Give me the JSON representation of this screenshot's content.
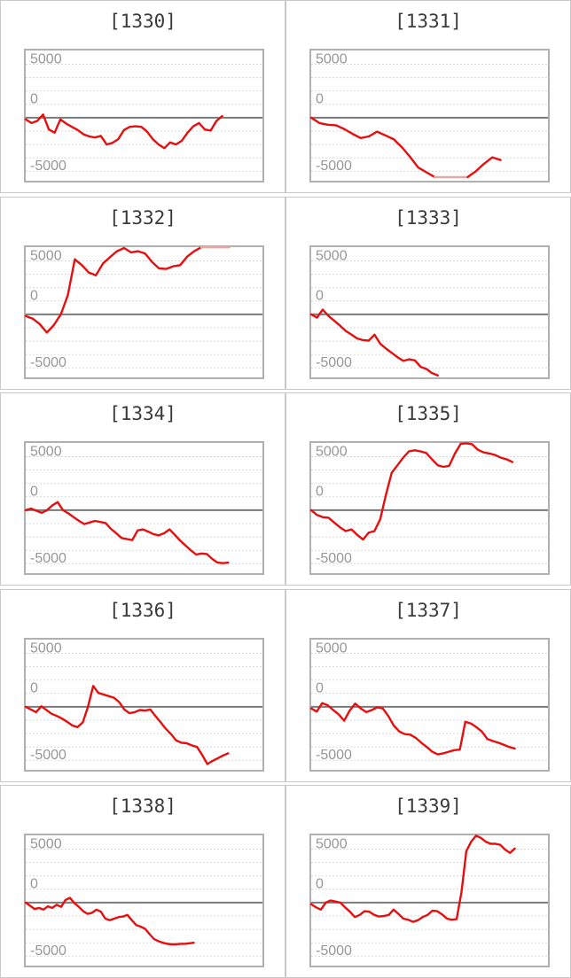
{
  "page": {
    "background_color": "#ffffff",
    "description_labels": []
  },
  "chart_config": {
    "type": "line",
    "y_tick_labels": [
      "5000",
      "0",
      "-5000"
    ],
    "grid_values": [
      5000,
      3750,
      2500,
      1250,
      0,
      -1250,
      -2500,
      -3750,
      -5000
    ],
    "ylim": [
      -6050,
      6450
    ],
    "zero_line": true,
    "grid_style": "dashed",
    "legend": false,
    "line_color": "#e60f0f",
    "clipped_line_color": "#e3aaa5",
    "grid_color": "#d8d8d8",
    "zero_line_color": "#7a7a7a",
    "plot_border_color": "#b0b0b0",
    "cell_border_color": "#c9c9c9",
    "tick_label_color": "#979797",
    "title_color": "#3a3a3a"
  },
  "chart_data": [
    {
      "type": "line",
      "title": "[1330]",
      "x_end_fraction": 0.83,
      "values": [
        -150,
        -500,
        -300,
        300,
        -1100,
        -1400,
        -150,
        -550,
        -850,
        -1150,
        -1550,
        -1750,
        -1850,
        -1700,
        -2500,
        -2350,
        -2000,
        -1150,
        -850,
        -800,
        -850,
        -1300,
        -2000,
        -2500,
        -2850,
        -2300,
        -2500,
        -2150,
        -1400,
        -800,
        -500,
        -1100,
        -1200,
        -300,
        150
      ]
    },
    {
      "type": "line",
      "title": "[1331]",
      "x_end_fraction": 0.8,
      "clip_range": [
        15,
        19
      ],
      "values": [
        0,
        -500,
        -650,
        -700,
        -1050,
        -1500,
        -1900,
        -1750,
        -1300,
        -1650,
        -2000,
        -2750,
        -3650,
        -4650,
        -5100,
        -5550,
        -5550,
        -5550,
        -5550,
        -5550,
        -5000,
        -4300,
        -3700,
        -3950
      ]
    },
    {
      "type": "line",
      "title": "[1332]",
      "x_end_fraction": 0.86,
      "clip_range": [
        25,
        29
      ],
      "values": [
        -150,
        -400,
        -900,
        -1700,
        -1000,
        0,
        1800,
        5150,
        4600,
        3900,
        3650,
        4750,
        5350,
        5900,
        6200,
        5800,
        5900,
        5700,
        4900,
        4300,
        4250,
        4500,
        4600,
        5400,
        5900,
        6280,
        6280,
        6280,
        6280,
        6280
      ]
    },
    {
      "type": "line",
      "title": "[1333]",
      "x_end_fraction": 0.535,
      "values": [
        0,
        -300,
        450,
        -150,
        -600,
        -1050,
        -1550,
        -1900,
        -2250,
        -2400,
        -2450,
        -1900,
        -2750,
        -3200,
        -3600,
        -4000,
        -4350,
        -4200,
        -4300,
        -4900,
        -5100,
        -5500,
        -5700
      ]
    },
    {
      "type": "line",
      "title": "[1334]",
      "x_end_fraction": 0.855,
      "values": [
        0,
        150,
        -50,
        -250,
        0,
        450,
        750,
        0,
        -300,
        -650,
        -1000,
        -1300,
        -1150,
        -1000,
        -1100,
        -1200,
        -1750,
        -2150,
        -2600,
        -2700,
        -2800,
        -1900,
        -1800,
        -2000,
        -2250,
        -2350,
        -2150,
        -1800,
        -2300,
        -2850,
        -3300,
        -3750,
        -4150,
        -4050,
        -4100,
        -4550,
        -4900,
        -4950,
        -4900
      ]
    },
    {
      "type": "line",
      "title": "[1335]",
      "x_end_fraction": 0.85,
      "values": [
        0,
        -450,
        -650,
        -700,
        -1150,
        -1600,
        -1950,
        -1800,
        -2300,
        -2750,
        -2100,
        -1950,
        -850,
        1450,
        3500,
        4200,
        4900,
        5500,
        5600,
        5500,
        5350,
        4750,
        4200,
        4050,
        4150,
        5300,
        6200,
        6250,
        6150,
        5650,
        5400,
        5300,
        5150,
        4900,
        4750,
        4500
      ]
    },
    {
      "type": "line",
      "title": "[1336]",
      "x_end_fraction": 0.855,
      "values": [
        0,
        -250,
        -500,
        50,
        -300,
        -650,
        -850,
        -1100,
        -1400,
        -1750,
        -1900,
        -1450,
        0,
        1950,
        1300,
        1150,
        1000,
        850,
        450,
        -250,
        -600,
        -500,
        -300,
        -350,
        -250,
        -850,
        -1450,
        -2050,
        -2550,
        -3150,
        -3350,
        -3400,
        -3600,
        -3750,
        -4500,
        -5350,
        -5050,
        -4800,
        -4550,
        -4350
      ]
    },
    {
      "type": "line",
      "title": "[1337]",
      "x_end_fraction": 0.86,
      "values": [
        -150,
        -450,
        350,
        150,
        -300,
        -700,
        -1300,
        -350,
        300,
        -150,
        -500,
        -300,
        -50,
        -150,
        -850,
        -1750,
        -2300,
        -2550,
        -2600,
        -2900,
        -3350,
        -3750,
        -4200,
        -4450,
        -4350,
        -4200,
        -4050,
        -4000,
        -1400,
        -1550,
        -1900,
        -2300,
        -3000,
        -3200,
        -3350,
        -3550,
        -3750,
        -3900
      ]
    },
    {
      "type": "line",
      "title": "[1338]",
      "x_end_fraction": 0.71,
      "values": [
        0,
        -300,
        -600,
        -500,
        -650,
        -350,
        -500,
        -200,
        -400,
        250,
        450,
        -50,
        -400,
        -800,
        -1050,
        -950,
        -650,
        -850,
        -1500,
        -1650,
        -1500,
        -1350,
        -1300,
        -1150,
        -1650,
        -2100,
        -2250,
        -2450,
        -2950,
        -3400,
        -3600,
        -3750,
        -3850,
        -3900,
        -3900,
        -3850,
        -3850,
        -3800,
        -3750
      ]
    },
    {
      "type": "line",
      "title": "[1339]",
      "x_end_fraction": 0.86,
      "values": [
        -150,
        -450,
        -650,
        0,
        200,
        100,
        0,
        -450,
        -850,
        -1350,
        -1150,
        -800,
        -850,
        -1150,
        -1300,
        -1250,
        -1150,
        -650,
        -1050,
        -1500,
        -1600,
        -1800,
        -1650,
        -1350,
        -1150,
        -750,
        -800,
        -1100,
        -1500,
        -1600,
        -1550,
        1000,
        4800,
        5700,
        6250,
        6050,
        5700,
        5500,
        5500,
        5400,
        4950,
        4650,
        5050
      ]
    }
  ]
}
